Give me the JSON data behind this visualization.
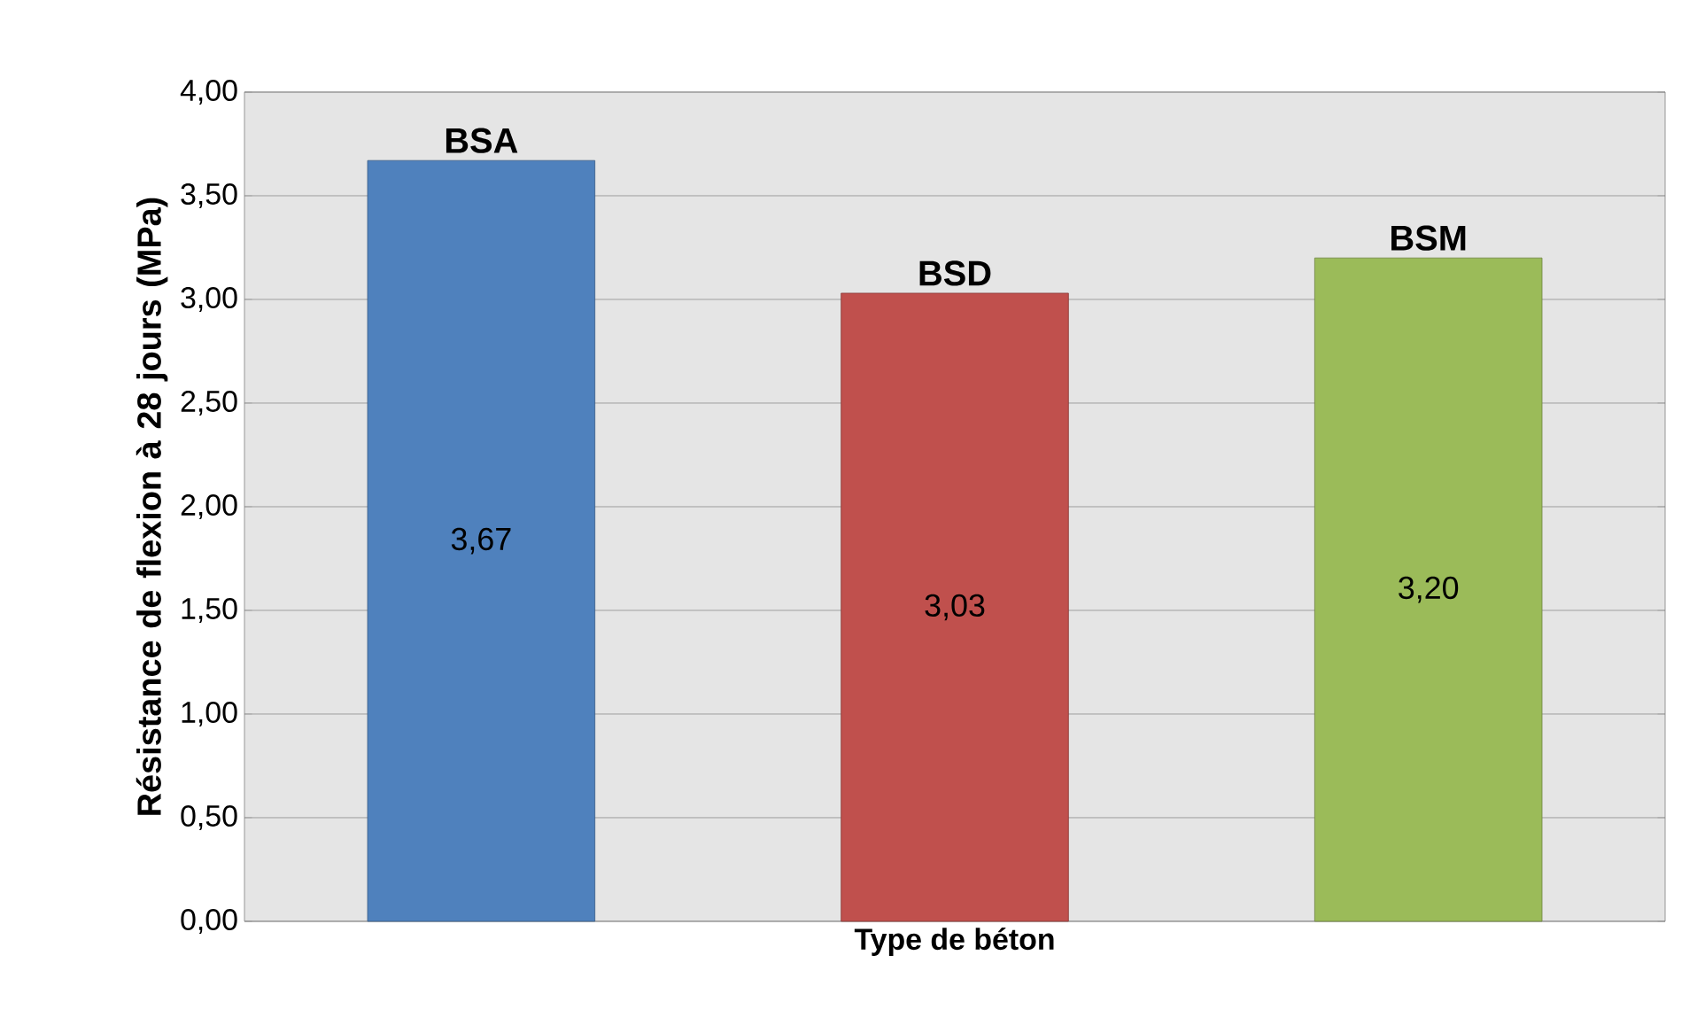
{
  "chart_data": {
    "type": "bar",
    "xlabel": "Type de béton",
    "ylabel": "Résistance de flexion à 28 jours (MPa)",
    "categories": [
      "BSA",
      "BSD",
      "BSM"
    ],
    "values": [
      3.67,
      3.03,
      3.2
    ],
    "value_labels": [
      "3,67",
      "3,03",
      "3,20"
    ],
    "colors": [
      "#4f81bd",
      "#c0504d",
      "#9bbb59"
    ],
    "ylim": [
      0,
      4
    ],
    "yticks": [
      {
        "value": 0,
        "label": "0,00"
      },
      {
        "value": 0.5,
        "label": "0,50"
      },
      {
        "value": 1,
        "label": "1,00"
      },
      {
        "value": 1.5,
        "label": "1,50"
      },
      {
        "value": 2,
        "label": "2,00"
      },
      {
        "value": 2.5,
        "label": "2,50"
      },
      {
        "value": 3,
        "label": "3,00"
      },
      {
        "value": 3.5,
        "label": "3,50"
      },
      {
        "value": 4,
        "label": "4,00"
      }
    ],
    "grid": "y"
  }
}
